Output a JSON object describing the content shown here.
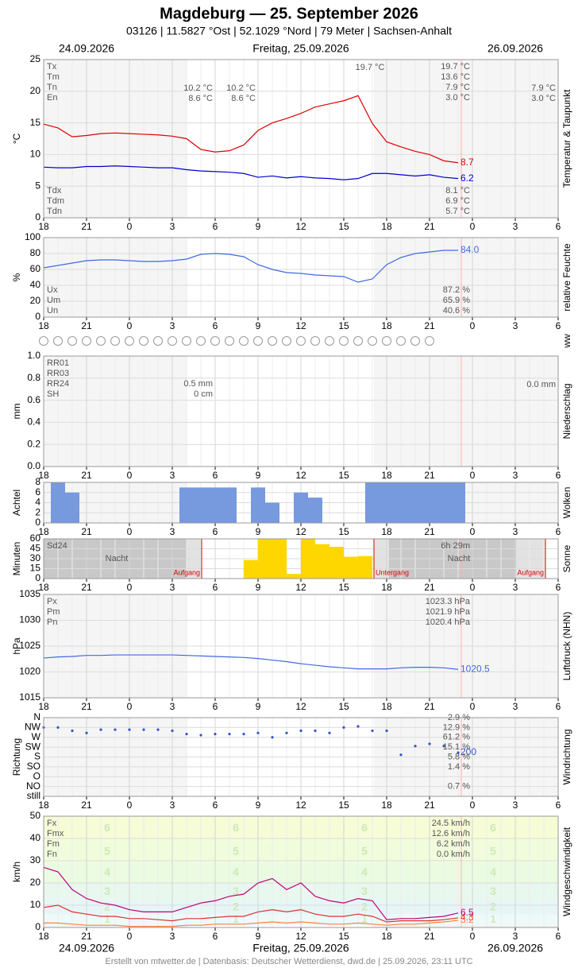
{
  "header": {
    "title": "Magdeburg  —  25. September 2026",
    "subtitle": "03126  |  11.5827 °Ost  |  52.1029 °Nord  |  79 Meter  |  Sachsen-Anhalt",
    "date_left": "24.09.2026",
    "date_center": "Freitag, 25.09.2026",
    "date_right": "26.09.2026"
  },
  "x_axis": {
    "xlim": [
      0,
      36
    ],
    "xticks": [
      {
        "value": 0,
        "label": "18"
      },
      {
        "value": 3,
        "label": "21"
      },
      {
        "value": 6,
        "label": "0"
      },
      {
        "value": 9,
        "label": "3"
      },
      {
        "value": 12,
        "label": "6"
      },
      {
        "value": 15,
        "label": "9"
      },
      {
        "value": 18,
        "label": "12"
      },
      {
        "value": 21,
        "label": "15"
      },
      {
        "value": 24,
        "label": "18"
      },
      {
        "value": 27,
        "label": "21"
      },
      {
        "value": 30,
        "label": "0"
      },
      {
        "value": 33,
        "label": "3"
      },
      {
        "value": 36,
        "label": "6"
      }
    ]
  },
  "ww_label": "ww",
  "chart_data": [
    {
      "type": "line",
      "y_label": "°C",
      "side_label": "Temperatur & Taupunkt",
      "ylim": [
        0,
        25
      ],
      "yticks": [
        0,
        5,
        10,
        15,
        20,
        25
      ],
      "grid": true,
      "x": [
        0,
        1,
        2,
        3,
        4,
        5,
        6,
        7,
        8,
        9,
        10,
        11,
        12,
        13,
        14,
        15,
        16,
        17,
        18,
        19,
        20,
        21,
        22,
        23,
        24,
        25,
        26,
        27,
        28,
        29
      ],
      "series": [
        {
          "color": "#e00000",
          "label_last": true,
          "values": [
            14.8,
            14.2,
            12.8,
            13.0,
            13.3,
            13.4,
            13.3,
            13.2,
            13.1,
            12.9,
            12.5,
            10.8,
            10.4,
            10.6,
            11.5,
            13.8,
            15.0,
            15.7,
            16.5,
            17.5,
            18.0,
            18.5,
            19.3,
            14.9,
            12.0,
            11.2,
            10.5,
            10.0,
            9.0,
            8.7
          ]
        },
        {
          "color": "#0000d0",
          "label_last": true,
          "values": [
            8.0,
            7.9,
            7.9,
            8.1,
            8.1,
            8.2,
            8.1,
            8.0,
            7.9,
            7.9,
            7.6,
            7.4,
            7.3,
            7.2,
            7.0,
            6.4,
            6.6,
            6.3,
            6.5,
            6.3,
            6.2,
            6.0,
            6.2,
            7.0,
            7.0,
            6.8,
            6.6,
            6.8,
            6.4,
            6.2
          ]
        }
      ],
      "stats": [
        {
          "name": "Tx",
          "value": "19.7 °C"
        },
        {
          "name": "Tm",
          "value": "13.6 °C"
        },
        {
          "name": "Tn",
          "value": "7.9 °C"
        },
        {
          "name": "En",
          "value": "3.0 °C"
        }
      ],
      "stats_bottom": [
        {
          "name": "Tdx",
          "value": "8.1 °C"
        },
        {
          "name": "Tdm",
          "value": "6.9 °C"
        },
        {
          "name": "Tdn",
          "value": "5.7 °C"
        }
      ],
      "annotations": [
        "19.7 °C",
        "10.2 °C",
        "8.6 °C",
        "10.2 °C",
        "8.6 °C",
        "7.9 °C",
        "3.0 °C"
      ]
    },
    {
      "type": "line",
      "y_label": "%",
      "side_label": "relative Feuchte",
      "ylim": [
        0,
        100
      ],
      "yticks": [
        0,
        20,
        40,
        60,
        80,
        100
      ],
      "grid": true,
      "x": [
        0,
        1,
        2,
        3,
        4,
        5,
        6,
        7,
        8,
        9,
        10,
        11,
        12,
        13,
        14,
        15,
        16,
        17,
        18,
        19,
        20,
        21,
        22,
        23,
        24,
        25,
        26,
        27,
        28,
        29
      ],
      "series": [
        {
          "color": "#4169e1",
          "label_last": true,
          "values": [
            62,
            65,
            68,
            71,
            72,
            72,
            71,
            70,
            70,
            71,
            73,
            79,
            80,
            79,
            76,
            66,
            60,
            56,
            55,
            53,
            52,
            51,
            44,
            48,
            66,
            75,
            80,
            82,
            84,
            84
          ],
          "value_labels": [
            null,
            null,
            null,
            null,
            null,
            null,
            null,
            null,
            null,
            null,
            null,
            null,
            null,
            null,
            null,
            null,
            null,
            null,
            null,
            null,
            null,
            null,
            null,
            null,
            null,
            null,
            null,
            null,
            null,
            "84.0"
          ]
        }
      ],
      "stats_bottom": [
        {
          "name": "Ux",
          "value": "87.2 %"
        },
        {
          "name": "Um",
          "value": "65.9 %"
        },
        {
          "name": "Un",
          "value": "40.6 %"
        }
      ]
    },
    {
      "type": "bar",
      "y_label": "mm",
      "side_label": "Niederschlag",
      "ylim": [
        0,
        1
      ],
      "yticks": [
        {
          "value": 0,
          "label": "0.0"
        },
        0.2,
        0.4,
        0.6,
        0.8,
        {
          "value": 1,
          "label": "1.0"
        }
      ],
      "grid": true,
      "stats": [
        {
          "name": "RR01"
        },
        {
          "name": "RR03"
        },
        {
          "name": "RR24",
          "value": "0.5 mm"
        },
        {
          "name": "SH",
          "value": "0 cm"
        }
      ],
      "annotations": [
        "0.0 mm"
      ]
    },
    {
      "type": "bar",
      "bar_align": "center",
      "y_label": "Achtel",
      "side_label": "Wolken",
      "ylim": [
        0,
        8
      ],
      "yticks": [
        0,
        2,
        4,
        6,
        8
      ],
      "grid": true,
      "x": [
        0,
        1,
        2,
        3,
        4,
        5,
        6,
        7,
        8,
        9,
        10,
        11,
        12,
        13,
        14,
        15,
        16,
        17,
        18,
        19,
        20,
        21,
        22,
        23,
        24,
        25,
        26,
        27,
        28,
        29
      ],
      "series": [
        {
          "color": "#7799dd",
          "values": [
            0,
            8,
            6,
            0,
            0,
            0,
            0,
            0,
            0,
            0,
            7,
            7,
            7,
            7,
            0,
            7,
            4,
            0,
            6,
            5,
            0,
            0,
            0,
            8,
            8,
            8,
            8,
            8,
            8,
            8
          ]
        }
      ]
    },
    {
      "type": "bar",
      "bar_align": "edge",
      "y_label": "Minuten",
      "side_label": "Sonne",
      "ylim": [
        0,
        60
      ],
      "yticks": [
        0,
        15,
        30,
        45,
        60
      ],
      "grid": true,
      "x": [
        14,
        15,
        16,
        17,
        18,
        19,
        20,
        21,
        22
      ],
      "series": [
        {
          "color": "#ffd700",
          "values": [
            28,
            60,
            60,
            7,
            60,
            52,
            48,
            33,
            34
          ]
        }
      ],
      "stats": [
        {
          "name": "Sd24",
          "value": "6h 29m"
        }
      ],
      "annotations": [
        "Nacht",
        "Aufgang",
        "Untergang",
        "Nacht",
        "Aufgang"
      ]
    },
    {
      "type": "line",
      "y_label": "hPa",
      "side_label": "Luftdruck (NHN)",
      "ylim": [
        1015,
        1035
      ],
      "yticks": [
        1015,
        1020,
        1025,
        1030,
        1035
      ],
      "grid": true,
      "x": [
        0,
        1,
        2,
        3,
        4,
        5,
        6,
        7,
        8,
        9,
        10,
        11,
        12,
        13,
        14,
        15,
        16,
        17,
        18,
        19,
        20,
        21,
        22,
        23,
        24,
        25,
        26,
        27,
        28,
        29
      ],
      "series": [
        {
          "color": "#4169e1",
          "label_last": true,
          "values": [
            1022.7,
            1022.9,
            1023.0,
            1023.2,
            1023.2,
            1023.3,
            1023.3,
            1023.3,
            1023.3,
            1023.3,
            1023.2,
            1023.1,
            1023.0,
            1022.9,
            1022.8,
            1022.6,
            1022.3,
            1022.0,
            1021.6,
            1021.3,
            1021.0,
            1020.8,
            1020.6,
            1020.6,
            1020.6,
            1020.8,
            1020.9,
            1020.9,
            1020.8,
            1020.5
          ]
        }
      ],
      "stats": [
        {
          "name": "Px",
          "value": "1023.3 hPa"
        },
        {
          "name": "Pm",
          "value": "1021.9 hPa"
        },
        {
          "name": "Pn",
          "value": "1020.4 hPa"
        }
      ]
    },
    {
      "type": "scatter",
      "y_label": "Richtung",
      "side_label": "Windrichtung",
      "ylim": [
        0,
        360
      ],
      "yticks": [
        {
          "value": 360,
          "label": "N"
        },
        {
          "value": 315,
          "label": "NW"
        },
        {
          "value": 270,
          "label": "W"
        },
        {
          "value": 225,
          "label": "SW"
        },
        {
          "value": 180,
          "label": "S"
        },
        {
          "value": 135,
          "label": "SO"
        },
        {
          "value": 90,
          "label": "O"
        },
        {
          "value": 45,
          "label": "NO"
        },
        {
          "value": 0,
          "label": "still"
        }
      ],
      "grid": true,
      "x": [
        0,
        1,
        2,
        3,
        4,
        5,
        6,
        7,
        8,
        9,
        10,
        11,
        12,
        13,
        14,
        15,
        16,
        17,
        18,
        19,
        20,
        21,
        22,
        23,
        24,
        25,
        26,
        27,
        28,
        29
      ],
      "series": [
        {
          "color": "#3355cc",
          "label_last": true,
          "values": [
            315,
            315,
            300,
            290,
            305,
            305,
            305,
            305,
            305,
            300,
            285,
            280,
            285,
            285,
            285,
            290,
            270,
            290,
            300,
            300,
            290,
            315,
            320,
            300,
            300,
            190,
            230,
            240,
            230,
            200
          ]
        }
      ],
      "shares": [
        "2.9 %",
        "12.9 %",
        "61.2 %",
        "15.1 %",
        "5.8 %",
        "1.4 %",
        null,
        "0.7 %",
        null
      ]
    },
    {
      "type": "line",
      "y_label": "km/h",
      "side_label": "Windgeschwindigkeit",
      "ylim": [
        0,
        50
      ],
      "yticks": [
        0,
        10,
        20,
        30,
        40,
        50
      ],
      "grid": true,
      "beaufort": {
        "labels": [
          1,
          2,
          3,
          4,
          5,
          6
        ],
        "limits": [
          1,
          6,
          12,
          20,
          29,
          39,
          50
        ],
        "colors": [
          "#eefafa",
          "#e6f6f6",
          "#e8f8ee",
          "#eafbe2",
          "#f0fcdc",
          "#f6fcd6"
        ]
      },
      "x": [
        0,
        1,
        2,
        3,
        4,
        5,
        6,
        7,
        8,
        9,
        10,
        11,
        12,
        13,
        14,
        15,
        16,
        17,
        18,
        19,
        20,
        21,
        22,
        23,
        24,
        25,
        26,
        27,
        28,
        29
      ],
      "series": [
        {
          "color": "#c0007a",
          "label_last": true,
          "values": [
            27,
            25,
            17,
            13,
            11,
            10,
            8,
            7,
            7,
            7,
            9,
            11,
            12,
            14,
            15,
            20,
            22,
            17,
            20,
            14,
            12,
            11,
            13,
            12,
            3.5,
            4,
            4,
            4.5,
            5,
            6.5
          ]
        },
        {
          "color": "#e03030",
          "label_last": true,
          "values": [
            9,
            10,
            7,
            6,
            5,
            5,
            4,
            4,
            3.5,
            3,
            4,
            4,
            4.5,
            5,
            5,
            7,
            8,
            7,
            8,
            6,
            5,
            5,
            6,
            5,
            2.5,
            3,
            3,
            3,
            3.5,
            4.3
          ]
        },
        {
          "color": "#ff8040",
          "label_last": true,
          "values": [
            2,
            2,
            1.5,
            1,
            1,
            1,
            0.5,
            0.5,
            0.5,
            0.5,
            1,
            1,
            1.5,
            1.5,
            1.5,
            2,
            2.5,
            2,
            2.5,
            2,
            1.5,
            1.5,
            2,
            1.5,
            1,
            1.5,
            1.5,
            2,
            2.5,
            3.2
          ]
        }
      ],
      "stats": [
        {
          "name": "Fx",
          "value": "24.5 km/h"
        },
        {
          "name": "Fmx",
          "value": "12.6 km/h"
        },
        {
          "name": "Fm",
          "value": "6.2 km/h"
        },
        {
          "name": "Fn",
          "value": "0.0 km/h"
        }
      ]
    }
  ],
  "footer": "Erstellt von mtwetter.de | Datenbasis: Deutscher Wetterdienst, dwd.de | 25.09.2026, 23:11 UTC"
}
